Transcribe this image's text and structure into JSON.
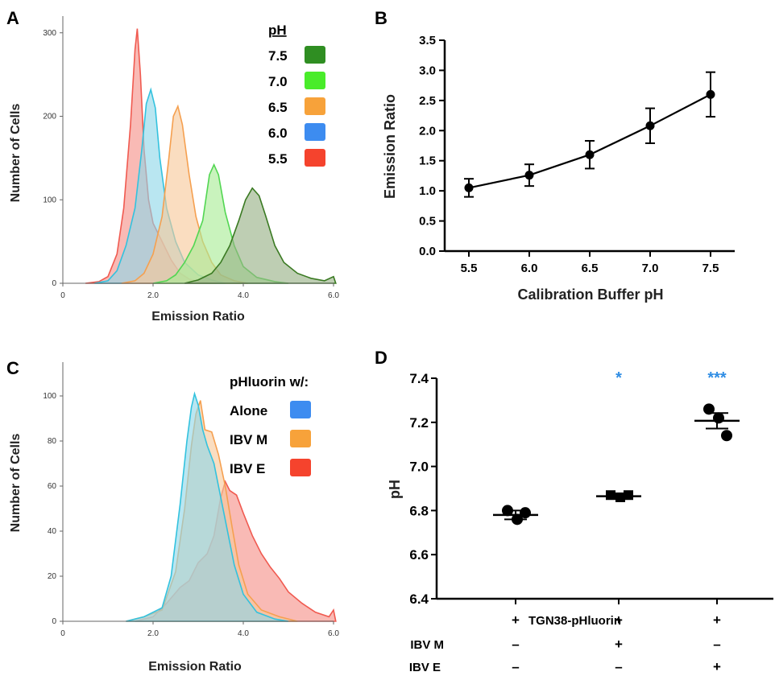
{
  "panels": {
    "A": "A",
    "B": "B",
    "C": "C",
    "D": "D"
  },
  "chart_data": [
    {
      "id": "A",
      "type": "area",
      "xlabel": "Emission Ratio",
      "ylabel": "Number of Cells",
      "xlim": [
        0,
        6.0
      ],
      "ylim": [
        0,
        320
      ],
      "xticks": [
        "0",
        "2.0",
        "4.0",
        "6.0"
      ],
      "yticks": [
        "0",
        "100",
        "200",
        "300"
      ],
      "legend_title": "pH",
      "legend_position": "top-right",
      "series": [
        {
          "name": "5.5",
          "color": "#f05a50",
          "fill": "#f59088",
          "points": [
            [
              0.5,
              0
            ],
            [
              0.8,
              2
            ],
            [
              1.0,
              8
            ],
            [
              1.2,
              35
            ],
            [
              1.35,
              90
            ],
            [
              1.5,
              190
            ],
            [
              1.6,
              280
            ],
            [
              1.65,
              305
            ],
            [
              1.72,
              250
            ],
            [
              1.8,
              160
            ],
            [
              1.9,
              100
            ],
            [
              2.0,
              72
            ],
            [
              2.2,
              50
            ],
            [
              2.4,
              28
            ],
            [
              2.6,
              12
            ],
            [
              2.8,
              5
            ],
            [
              3.0,
              2
            ],
            [
              3.4,
              0
            ]
          ]
        },
        {
          "name": "6.0",
          "color": "#33c2de",
          "fill": "#8ed7e8",
          "points": [
            [
              0.7,
              0
            ],
            [
              1.0,
              3
            ],
            [
              1.2,
              15
            ],
            [
              1.4,
              45
            ],
            [
              1.6,
              90
            ],
            [
              1.75,
              160
            ],
            [
              1.85,
              215
            ],
            [
              1.95,
              232
            ],
            [
              2.05,
              210
            ],
            [
              2.15,
              150
            ],
            [
              2.3,
              90
            ],
            [
              2.5,
              50
            ],
            [
              2.7,
              25
            ],
            [
              3.0,
              10
            ],
            [
              3.3,
              4
            ],
            [
              3.6,
              0
            ]
          ]
        },
        {
          "name": "6.5",
          "color": "#f5a050",
          "fill": "#f7c89a",
          "points": [
            [
              1.3,
              0
            ],
            [
              1.6,
              3
            ],
            [
              1.8,
              12
            ],
            [
              2.0,
              35
            ],
            [
              2.2,
              80
            ],
            [
              2.35,
              150
            ],
            [
              2.45,
              200
            ],
            [
              2.55,
              212
            ],
            [
              2.65,
              190
            ],
            [
              2.8,
              130
            ],
            [
              2.95,
              80
            ],
            [
              3.1,
              50
            ],
            [
              3.3,
              25
            ],
            [
              3.5,
              10
            ],
            [
              3.8,
              3
            ],
            [
              4.1,
              0
            ]
          ]
        },
        {
          "name": "7.0",
          "color": "#52d652",
          "fill": "#a8ec94",
          "points": [
            [
              2.0,
              0
            ],
            [
              2.3,
              3
            ],
            [
              2.5,
              10
            ],
            [
              2.7,
              25
            ],
            [
              2.9,
              45
            ],
            [
              3.1,
              75
            ],
            [
              3.25,
              130
            ],
            [
              3.35,
              142
            ],
            [
              3.45,
              130
            ],
            [
              3.6,
              85
            ],
            [
              3.8,
              45
            ],
            [
              4.0,
              20
            ],
            [
              4.3,
              7
            ],
            [
              4.7,
              2
            ],
            [
              5.0,
              0
            ]
          ]
        },
        {
          "name": "7.5",
          "color": "#3a7a22",
          "fill": "#96b084",
          "points": [
            [
              2.7,
              0
            ],
            [
              3.0,
              4
            ],
            [
              3.3,
              12
            ],
            [
              3.5,
              25
            ],
            [
              3.7,
              45
            ],
            [
              3.9,
              75
            ],
            [
              4.05,
              100
            ],
            [
              4.2,
              114
            ],
            [
              4.35,
              105
            ],
            [
              4.5,
              80
            ],
            [
              4.7,
              45
            ],
            [
              4.9,
              25
            ],
            [
              5.2,
              12
            ],
            [
              5.5,
              6
            ],
            [
              5.8,
              3
            ],
            [
              6.0,
              8
            ],
            [
              6.05,
              0
            ]
          ]
        }
      ]
    },
    {
      "id": "B",
      "type": "line",
      "xlabel": "Calibration Buffer pH",
      "ylabel": "Emission Ratio",
      "xlim": [
        5.3,
        7.7
      ],
      "ylim": [
        0,
        3.5
      ],
      "xticks": [
        "5.5",
        "6.0",
        "6.5",
        "7.0",
        "7.5"
      ],
      "yticks": [
        "0.0",
        "0.5",
        "1.0",
        "1.5",
        "2.0",
        "2.5",
        "3.0",
        "3.5"
      ],
      "x": [
        5.5,
        6.0,
        6.5,
        7.0,
        7.5
      ],
      "y": [
        1.05,
        1.26,
        1.6,
        2.08,
        2.6
      ],
      "error": [
        0.15,
        0.18,
        0.23,
        0.29,
        0.37
      ]
    },
    {
      "id": "C",
      "type": "area",
      "xlabel": "Emission Ratio",
      "ylabel": "Number of Cells",
      "xlim": [
        0,
        6.0
      ],
      "ylim": [
        0,
        115
      ],
      "xticks": [
        "0",
        "2.0",
        "4.0",
        "6.0"
      ],
      "yticks": [
        "0",
        "20",
        "40",
        "60",
        "80",
        "100"
      ],
      "legend_title": "pHluorin w/:",
      "legend_position": "top-right",
      "series": [
        {
          "name": "IBV E",
          "color": "#f05a50",
          "fill": "#f59088",
          "points": [
            [
              1.6,
              0
            ],
            [
              2.0,
              2
            ],
            [
              2.3,
              8
            ],
            [
              2.6,
              15
            ],
            [
              2.8,
              18
            ],
            [
              3.0,
              26
            ],
            [
              3.2,
              30
            ],
            [
              3.35,
              38
            ],
            [
              3.5,
              55
            ],
            [
              3.6,
              62
            ],
            [
              3.7,
              58
            ],
            [
              3.85,
              56
            ],
            [
              4.0,
              48
            ],
            [
              4.2,
              38
            ],
            [
              4.4,
              30
            ],
            [
              4.6,
              24
            ],
            [
              4.8,
              19
            ],
            [
              5.0,
              13
            ],
            [
              5.3,
              8
            ],
            [
              5.6,
              4
            ],
            [
              5.9,
              2
            ],
            [
              6.0,
              5
            ],
            [
              6.05,
              0
            ]
          ]
        },
        {
          "name": "IBV M",
          "color": "#f5a050",
          "fill": "#f7c89a",
          "points": [
            [
              1.4,
              0
            ],
            [
              1.8,
              2
            ],
            [
              2.2,
              5
            ],
            [
              2.5,
              22
            ],
            [
              2.7,
              50
            ],
            [
              2.85,
              78
            ],
            [
              2.95,
              92
            ],
            [
              3.05,
              98
            ],
            [
              3.15,
              85
            ],
            [
              3.3,
              84
            ],
            [
              3.45,
              74
            ],
            [
              3.6,
              60
            ],
            [
              3.75,
              42
            ],
            [
              3.9,
              25
            ],
            [
              4.1,
              12
            ],
            [
              4.4,
              5
            ],
            [
              4.8,
              2
            ],
            [
              5.2,
              0
            ]
          ]
        },
        {
          "name": "Alone",
          "color": "#33c2de",
          "fill": "#8ed7e8",
          "points": [
            [
              1.4,
              0
            ],
            [
              1.8,
              2
            ],
            [
              2.2,
              6
            ],
            [
              2.4,
              20
            ],
            [
              2.6,
              52
            ],
            [
              2.75,
              80
            ],
            [
              2.85,
              95
            ],
            [
              2.92,
              101
            ],
            [
              3.0,
              96
            ],
            [
              3.1,
              85
            ],
            [
              3.2,
              78
            ],
            [
              3.35,
              70
            ],
            [
              3.5,
              55
            ],
            [
              3.65,
              40
            ],
            [
              3.8,
              25
            ],
            [
              4.0,
              12
            ],
            [
              4.3,
              4
            ],
            [
              4.7,
              1
            ],
            [
              5.0,
              0
            ]
          ]
        }
      ]
    },
    {
      "id": "D",
      "type": "scatter",
      "ylabel": "pH",
      "ylim": [
        6.4,
        7.4
      ],
      "yticks": [
        "6.4",
        "6.6",
        "6.8",
        "7.0",
        "7.2",
        "7.4"
      ],
      "groups": [
        {
          "points": [
            6.8,
            6.76,
            6.79
          ],
          "mean": 6.78,
          "sem": 0.02,
          "marker": "circle",
          "significance": ""
        },
        {
          "points": [
            6.87,
            6.86,
            6.87
          ],
          "mean": 6.865,
          "sem": 0.005,
          "marker": "square",
          "significance": "*"
        },
        {
          "points": [
            7.26,
            7.22,
            7.14
          ],
          "mean": 7.207,
          "sem": 0.035,
          "marker": "circle",
          "significance": "***"
        }
      ],
      "sig_color": "#2f8de4",
      "conditions": [
        {
          "label": "TGN38-pHluorin",
          "values": [
            "+",
            "+",
            "+"
          ]
        },
        {
          "label": "IBV M",
          "values": [
            "–",
            "+",
            "–"
          ]
        },
        {
          "label": "IBV E",
          "values": [
            "–",
            "–",
            "+"
          ]
        }
      ]
    }
  ]
}
